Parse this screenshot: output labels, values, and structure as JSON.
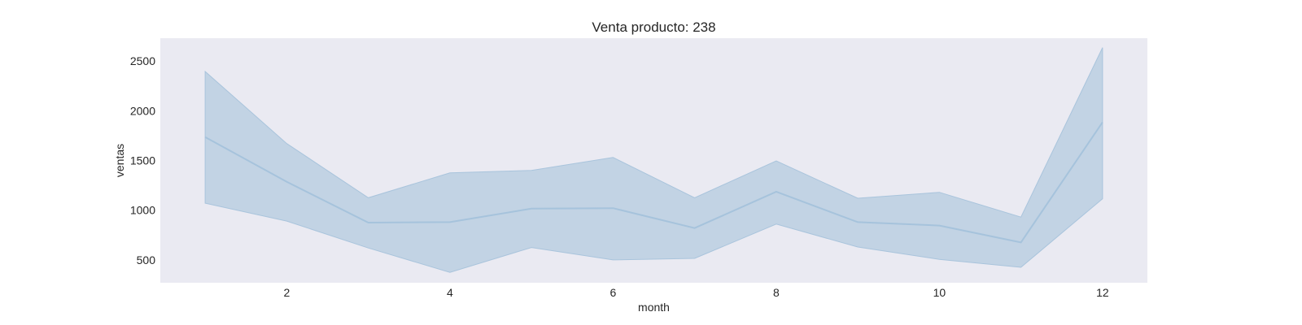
{
  "chart_data": {
    "type": "line",
    "title": "Venta producto: 238",
    "xlabel": "month",
    "ylabel": "ventas",
    "xlim": [
      0.45,
      12.55
    ],
    "ylim": [
      270,
      2730
    ],
    "x_ticks": [
      2,
      4,
      6,
      8,
      10,
      12
    ],
    "y_ticks": [
      500,
      1000,
      1500,
      2000,
      2500
    ],
    "grid": false,
    "colors": {
      "background": "#EAEAF2",
      "line": "#A6C3DC",
      "band": "#C2D3E4",
      "band_edge": "#A9C4DC"
    },
    "x": [
      1,
      2,
      3,
      4,
      5,
      6,
      7,
      8,
      9,
      10,
      11,
      12
    ],
    "series": [
      {
        "values": [
          1735,
          1285,
          875,
          880,
          1015,
          1020,
          820,
          1185,
          880,
          845,
          675,
          1885
        ],
        "lower": [
          1070,
          890,
          620,
          375,
          625,
          500,
          515,
          860,
          630,
          505,
          425,
          1115
        ],
        "upper": [
          2395,
          1670,
          1125,
          1375,
          1400,
          1530,
          1125,
          1495,
          1120,
          1180,
          930,
          2635
        ]
      }
    ]
  }
}
